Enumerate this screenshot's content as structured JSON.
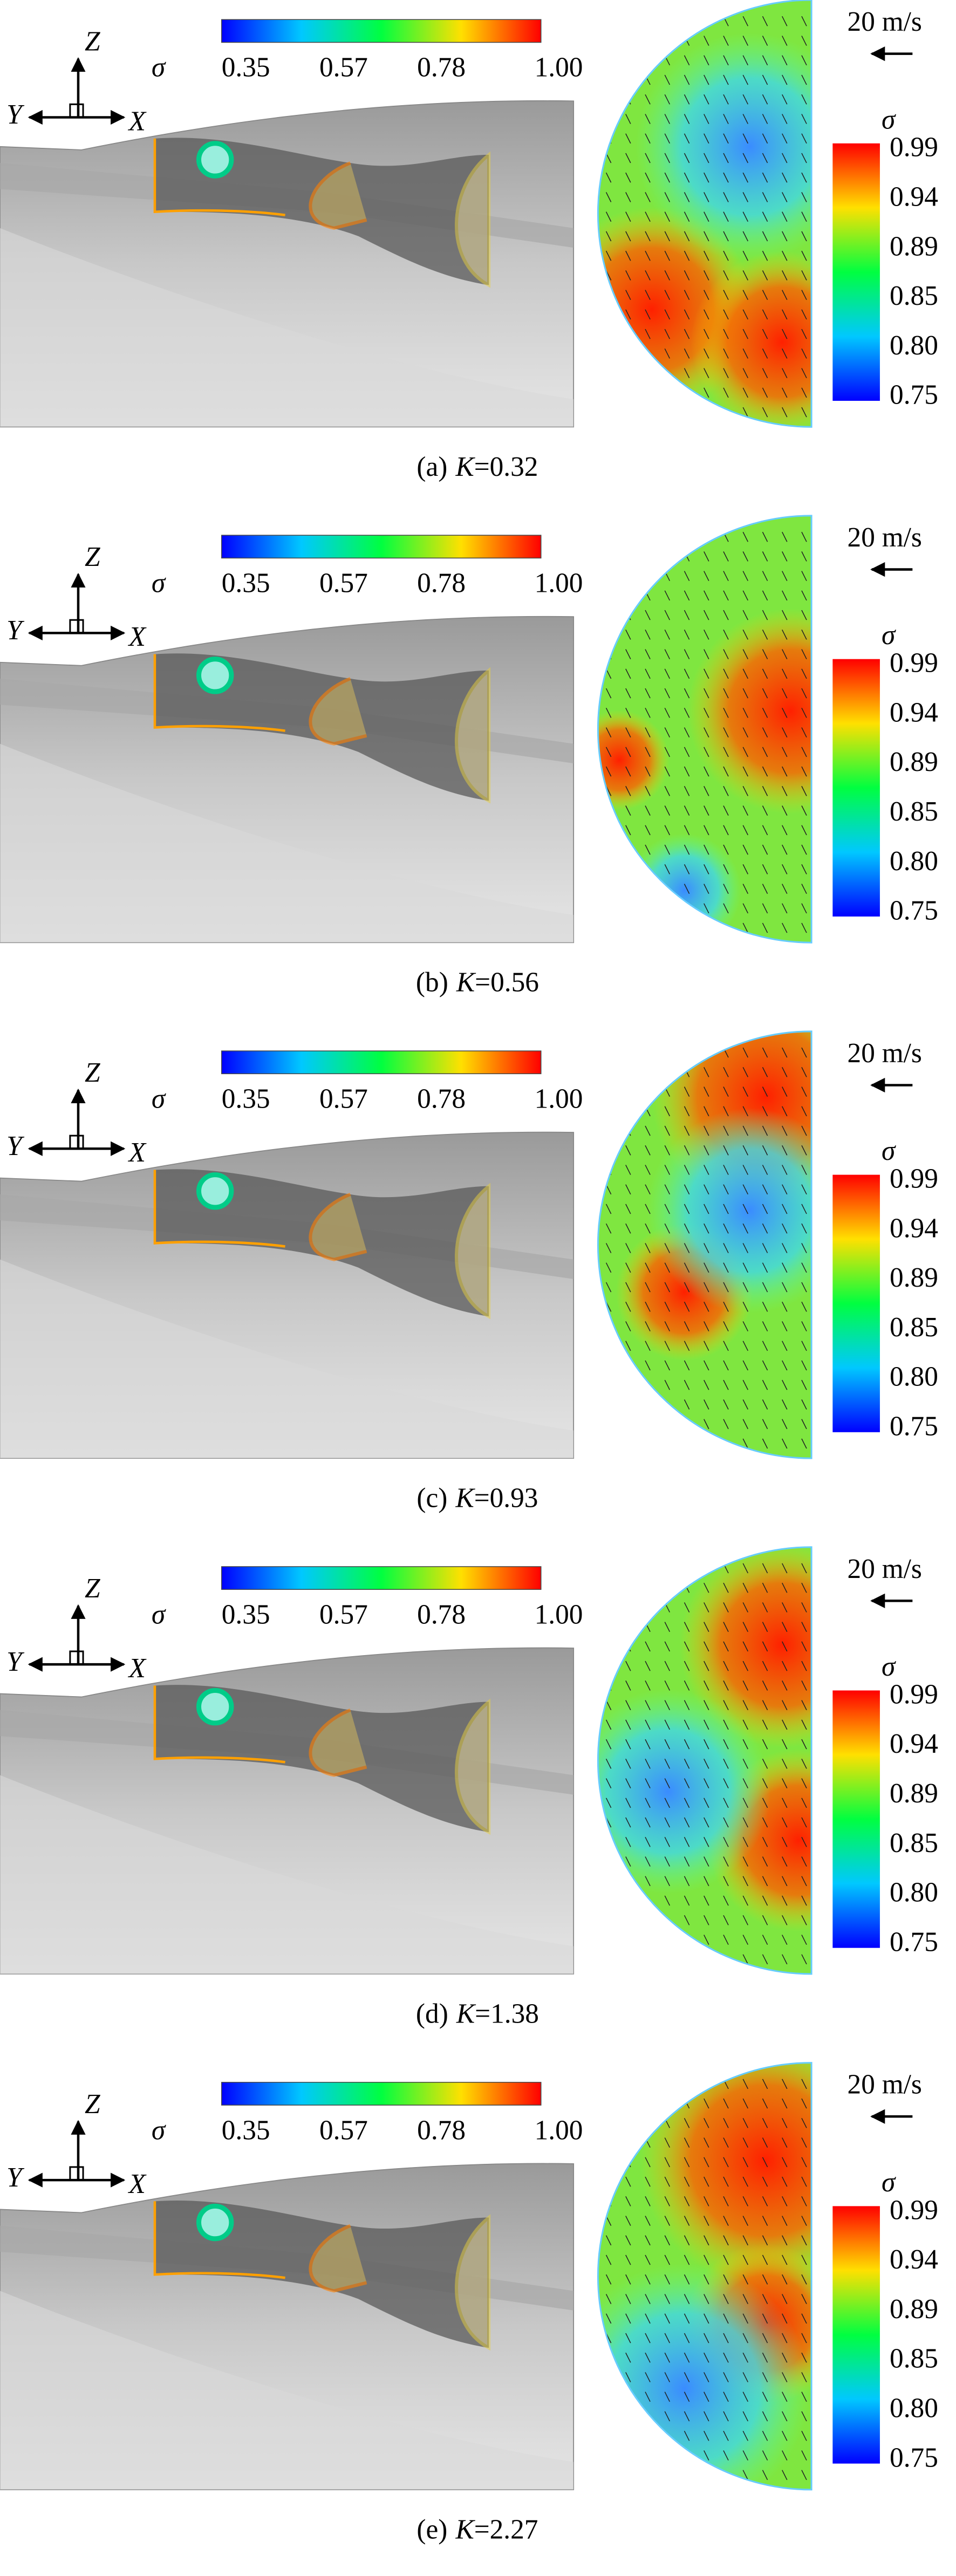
{
  "axes_triad": {
    "z": "Z",
    "y": "Y",
    "x": "X"
  },
  "colorbar_left": {
    "symbol": "σ",
    "ticks": [
      "0.35",
      "0.57",
      "0.78",
      "1.00"
    ]
  },
  "colorbar_right": {
    "symbol": "σ",
    "ticks": [
      "0.99",
      "0.94",
      "0.89",
      "0.85",
      "0.80",
      "0.75"
    ]
  },
  "velocity_scale": "20 m/s",
  "panels": [
    {
      "caption": [
        "(a)",
        "K",
        "=0.32"
      ]
    },
    {
      "caption": [
        "(b)",
        "K",
        "=0.56"
      ]
    },
    {
      "caption": [
        "(c)",
        "K",
        "=0.93"
      ]
    },
    {
      "caption": [
        "(d)",
        "K",
        "=1.38"
      ]
    },
    {
      "caption": [
        "(e)",
        "K",
        "=2.27"
      ]
    }
  ]
}
